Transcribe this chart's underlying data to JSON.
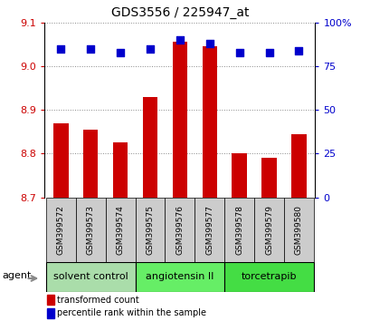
{
  "title": "GDS3556 / 225947_at",
  "samples": [
    "GSM399572",
    "GSM399573",
    "GSM399574",
    "GSM399575",
    "GSM399576",
    "GSM399577",
    "GSM399578",
    "GSM399579",
    "GSM399580"
  ],
  "red_values": [
    8.87,
    8.855,
    8.825,
    8.93,
    9.055,
    9.045,
    8.802,
    8.79,
    8.845
  ],
  "blue_values": [
    85,
    85,
    83,
    85,
    90,
    88,
    83,
    83,
    84
  ],
  "ylim_left": [
    8.7,
    9.1
  ],
  "yticks_left": [
    8.7,
    8.8,
    8.9,
    9.0,
    9.1
  ],
  "yticks_right": [
    0,
    25,
    50,
    75,
    100
  ],
  "bar_color": "#cc0000",
  "dot_color": "#0000cc",
  "bar_bottom": 8.7,
  "groups": [
    {
      "label": "solvent control",
      "indices": [
        0,
        1,
        2
      ],
      "color": "#aaddaa"
    },
    {
      "label": "angiotensin II",
      "indices": [
        3,
        4,
        5
      ],
      "color": "#66ee66"
    },
    {
      "label": "torcetrapib",
      "indices": [
        6,
        7,
        8
      ],
      "color": "#44dd44"
    }
  ],
  "group_row_color": "#cccccc",
  "agent_label": "agent",
  "legend_red": "transformed count",
  "legend_blue": "percentile rank within the sample",
  "bar_width": 0.5,
  "dot_size": 30,
  "left_tick_color": "#cc0000",
  "right_tick_color": "#0000cc",
  "grid_color": "#888888"
}
